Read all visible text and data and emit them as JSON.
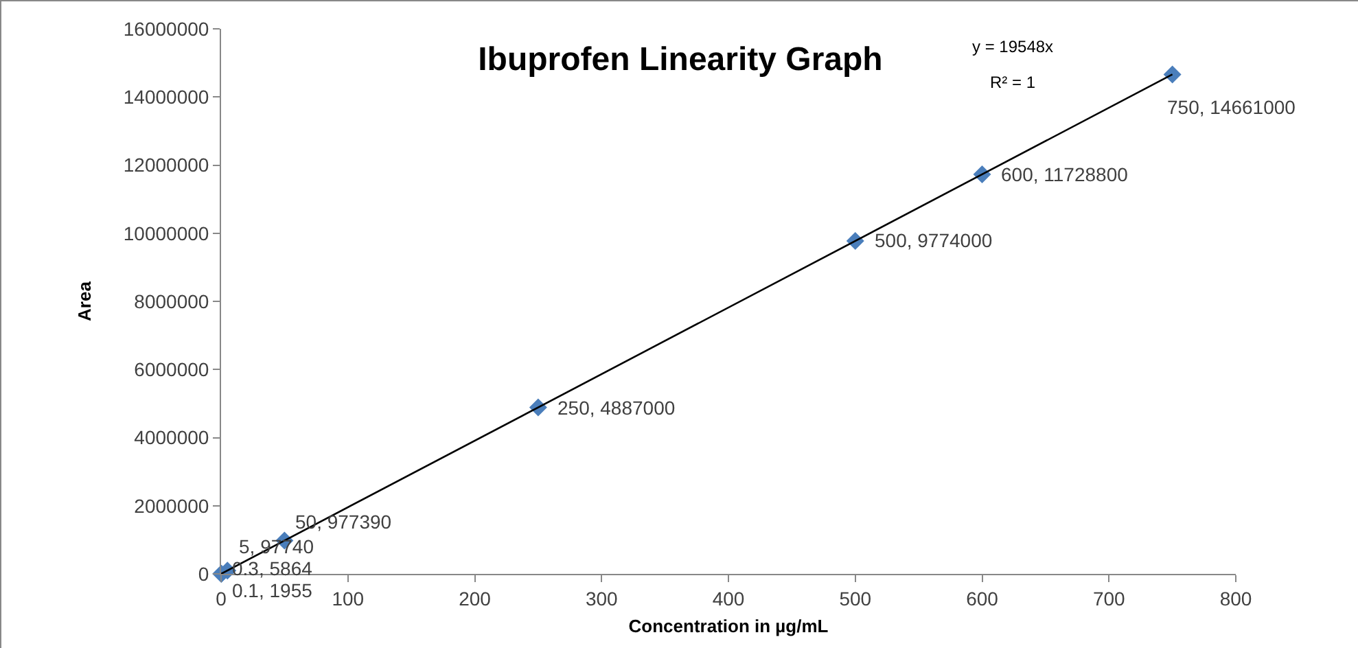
{
  "chart_data": {
    "type": "scatter",
    "title": "Ibuprofen Linearity Graph",
    "xlabel": "Concentration in µg/mL",
    "ylabel": "Area",
    "x": [
      0.1,
      0.3,
      5,
      50,
      250,
      500,
      600,
      750
    ],
    "series": [
      {
        "color": "#4a7ebb",
        "marker": "diamond",
        "values": [
          1955,
          5864,
          97740,
          977390,
          4887000,
          9774000,
          11728800,
          14661000
        ],
        "value_labels": [
          "0.1, 1955",
          "0.3, 5864",
          "5, 97740",
          "50, 977390",
          "250, 4887000",
          "500, 9774000",
          "600, 11728800",
          "750, 14661000"
        ]
      },
      {
        "type": "line",
        "color": "#000000",
        "x": [
          0,
          750
        ],
        "values": [
          0,
          14661000
        ],
        "line_style": "solid"
      }
    ],
    "annotations": [
      "y = 19548x",
      "R² = 1"
    ],
    "xlim": [
      0,
      800
    ],
    "xticks": [
      0,
      100,
      200,
      300,
      400,
      500,
      600,
      700,
      800
    ],
    "ylim": [
      0,
      16000000
    ],
    "yticks": [
      0,
      2000000,
      4000000,
      6000000,
      8000000,
      10000000,
      12000000,
      14000000,
      16000000
    ],
    "grid": false,
    "legend": false
  }
}
